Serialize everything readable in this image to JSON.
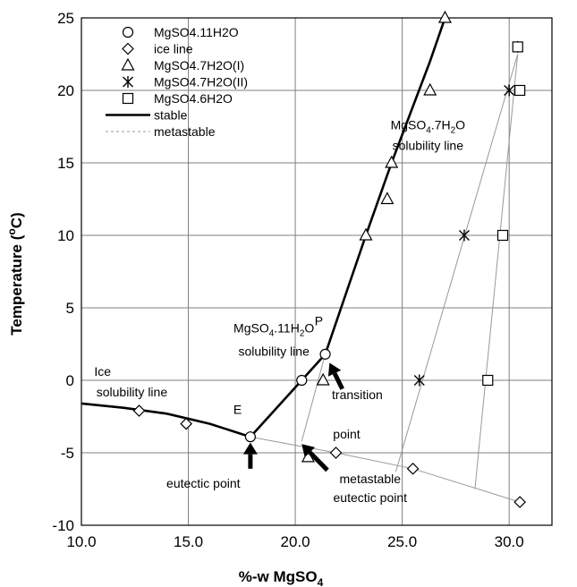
{
  "chart_data": {
    "type": "scatter",
    "xlabel": "%-w MgSO",
    "xlabel_sub": "4",
    "ylabel": "Temperature (",
    "ylabel_sup": "o",
    "ylabel_end": "C)",
    "xlim": [
      10,
      32
    ],
    "ylim": [
      -10,
      25
    ],
    "xticks": [
      10.0,
      15.0,
      20.0,
      25.0,
      30.0
    ],
    "xtick_labels": [
      "10.0",
      "15.0",
      "20.0",
      "25.0",
      "30.0"
    ],
    "yticks": [
      -10,
      -5,
      0,
      5,
      10,
      15,
      20,
      25
    ],
    "ytick_labels": [
      "-10",
      "-5",
      "0",
      "5",
      "10",
      "15",
      "20",
      "25"
    ],
    "grid": true,
    "legend_position": "top-left",
    "series": [
      {
        "name": "MgSO4.11H2O",
        "marker": "circle",
        "points": [
          [
            17.9,
            -3.9
          ],
          [
            20.3,
            0.0
          ],
          [
            21.4,
            1.8
          ]
        ]
      },
      {
        "name": "ice line",
        "marker": "diamond",
        "points": [
          [
            12.7,
            -2.1
          ],
          [
            14.9,
            -3.0
          ],
          [
            21.9,
            -5.0
          ],
          [
            25.5,
            -6.1
          ],
          [
            30.5,
            -8.4
          ]
        ]
      },
      {
        "name": "MgSO4.7H2O(I)",
        "marker": "triangle",
        "points": [
          [
            20.6,
            -5.3
          ],
          [
            21.3,
            0.0
          ],
          [
            23.3,
            10.0
          ],
          [
            24.3,
            12.5
          ],
          [
            24.5,
            15.0
          ],
          [
            26.3,
            20.0
          ],
          [
            27.0,
            25.0
          ]
        ]
      },
      {
        "name": "MgSO4.7H2O(II)",
        "marker": "asterisk",
        "points": [
          [
            25.8,
            0.0
          ],
          [
            27.9,
            10.0
          ],
          [
            30.0,
            20.0
          ],
          [
            30.4,
            23.0
          ]
        ]
      },
      {
        "name": "MgSO4.6H2O",
        "marker": "square",
        "points": [
          [
            29.0,
            0.0
          ],
          [
            29.7,
            10.0
          ],
          [
            30.5,
            20.0
          ],
          [
            30.4,
            23.0
          ]
        ]
      },
      {
        "name": "stable",
        "style": "line",
        "points": [
          [
            10.0,
            -1.6
          ],
          [
            12.0,
            -1.9
          ],
          [
            14.0,
            -2.3
          ],
          [
            16.0,
            -3.0
          ],
          [
            17.9,
            -3.9
          ],
          [
            20.3,
            0.0
          ],
          [
            21.4,
            1.8
          ],
          [
            23.3,
            10.0
          ],
          [
            24.5,
            15.0
          ],
          [
            26.3,
            22.0
          ],
          [
            27.0,
            25.0
          ]
        ]
      },
      {
        "name": "metastable",
        "style": "dashed",
        "segments": [
          [
            [
              17.9,
              -3.9
            ],
            [
              21.9,
              -5.0
            ],
            [
              25.5,
              -6.1
            ],
            [
              30.5,
              -8.4
            ]
          ],
          [
            [
              20.3,
              -4.2
            ],
            [
              21.4,
              1.8
            ]
          ],
          [
            [
              24.7,
              -6.3
            ],
            [
              30.4,
              22.5
            ]
          ],
          [
            [
              28.4,
              -7.5
            ],
            [
              30.4,
              22.5
            ]
          ]
        ]
      }
    ],
    "annotations": [
      {
        "text": "MgSO",
        "sub": "4",
        "tail": ".7H",
        "sub2": "2",
        "tail2": "O",
        "x": 26.2,
        "y": 17.3
      },
      {
        "text": "solubility line",
        "x": 26.2,
        "y": 15.9
      },
      {
        "text": "P",
        "x": 21.1,
        "y": 3.8
      },
      {
        "text": "MgSO",
        "sub": "4",
        "tail": ".11H",
        "sub2": "2",
        "tail2": "O",
        "x": 19.0,
        "y": 3.3
      },
      {
        "text": "solubility line",
        "x": 19.0,
        "y": 1.7
      },
      {
        "text": "Ice",
        "x": 10.6,
        "y": 0.3
      },
      {
        "text": "solubility line",
        "x": 10.7,
        "y": -1.1
      },
      {
        "text": "E",
        "x": 17.3,
        "y": -2.3
      },
      {
        "text": "transition",
        "x": 22.9,
        "y": -1.3
      },
      {
        "text": "point",
        "x": 22.4,
        "y": -4.0
      },
      {
        "text": "metastable",
        "x": 23.5,
        "y": -7.1
      },
      {
        "text": "eutectic point",
        "x": 23.5,
        "y": -8.4
      },
      {
        "text": "eutectic point",
        "x": 15.7,
        "y": -7.4
      }
    ],
    "arrows": [
      {
        "from": [
          17.9,
          -6.1
        ],
        "to": [
          17.9,
          -4.3
        ]
      },
      {
        "from": [
          22.2,
          -0.6
        ],
        "to": [
          21.6,
          1.2
        ]
      },
      {
        "from": [
          21.5,
          -6.2
        ],
        "to": [
          20.3,
          -4.4
        ]
      }
    ]
  }
}
